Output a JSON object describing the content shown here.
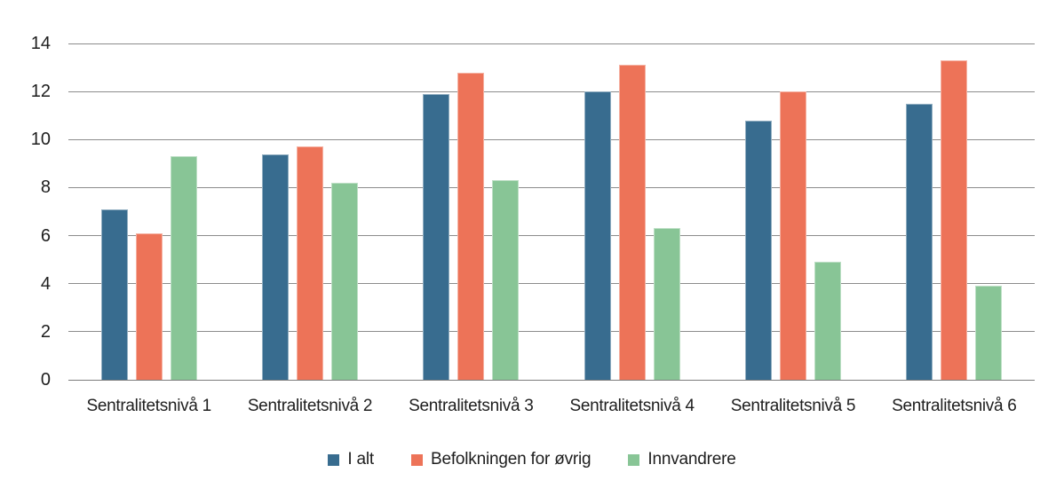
{
  "chart_data": {
    "type": "bar",
    "title": "",
    "xlabel": "",
    "ylabel": "",
    "categories": [
      "Sentralitetsnivå 1",
      "Sentralitetsnivå 2",
      "Sentralitetsnivå 3",
      "Sentralitetsnivå 4",
      "Sentralitetsnivå 5",
      "Sentralitetsnivå 6"
    ],
    "series": [
      {
        "name": "I alt",
        "color": "#386C8F",
        "values": [
          7.1,
          9.4,
          11.9,
          12.0,
          10.8,
          11.5
        ]
      },
      {
        "name": "Befolkningen for øvrig",
        "color": "#ED7358",
        "values": [
          6.1,
          9.7,
          12.8,
          13.1,
          12.0,
          13.3
        ]
      },
      {
        "name": "Innvandrere",
        "color": "#88C596",
        "values": [
          9.3,
          8.2,
          8.3,
          6.3,
          4.9,
          3.9
        ]
      }
    ],
    "ylim": [
      0,
      14
    ],
    "yticks": [
      0,
      2,
      4,
      6,
      8,
      10,
      12,
      14
    ],
    "grid": true,
    "legend_position": "bottom"
  },
  "style": {
    "background": "#ffffff",
    "text_color": "#1e1e1e",
    "gridline_color": "#8c8c8c",
    "baseline_color": "#7d7d7d"
  }
}
